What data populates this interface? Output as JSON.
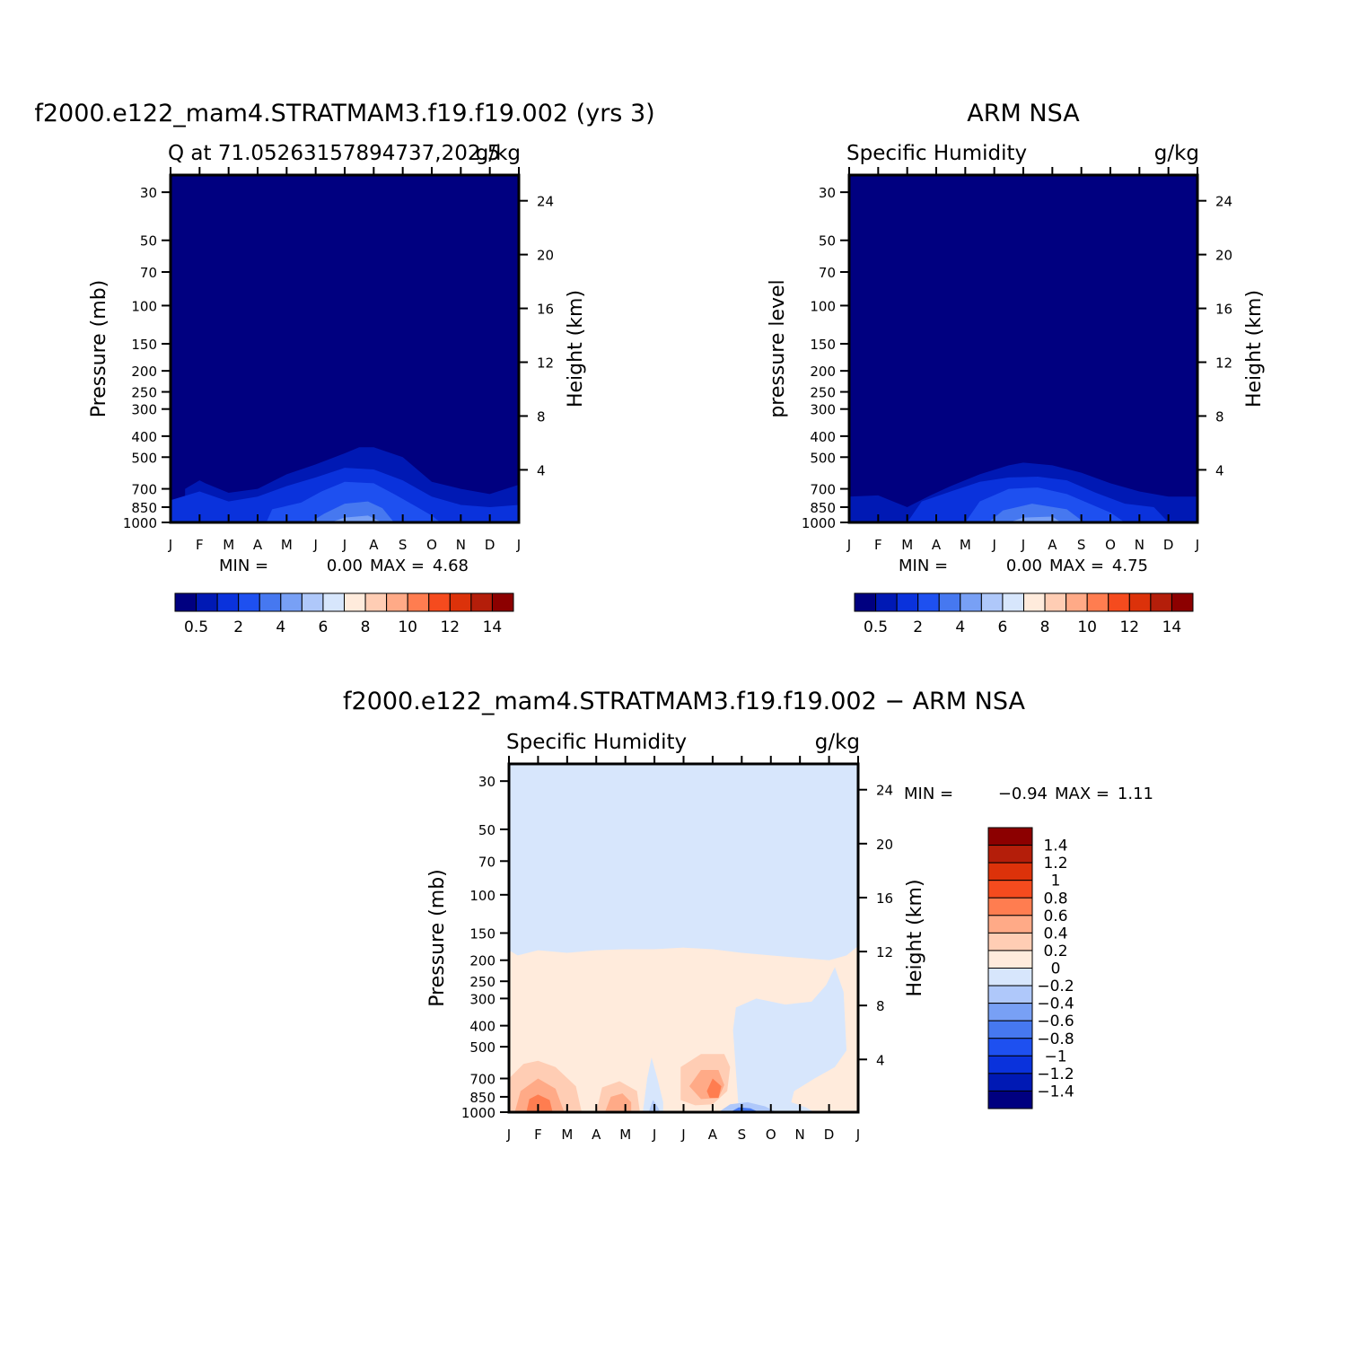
{
  "chart_data": [
    {
      "type": "contour",
      "title": "f2000.e122_mam4.STRATMAM3.f19.f19.002 (yrs 3)",
      "subtitle_left": "Q at 71.05263157894737,202.5",
      "units": "g/kg",
      "ylabel_left": "Pressure (mb)",
      "ylabel_right": "Height (km)",
      "x_ticks": [
        "J",
        "F",
        "M",
        "A",
        "M",
        "J",
        "J",
        "A",
        "S",
        "O",
        "N",
        "D",
        "J"
      ],
      "y_ticks_left": [
        30,
        50,
        70,
        100,
        150,
        200,
        250,
        300,
        400,
        500,
        700,
        850,
        1000
      ],
      "y_ticks_right": [
        24,
        20,
        16,
        12,
        8,
        4
      ],
      "y_scale": "log",
      "ylim": [
        1000,
        25
      ],
      "stats": {
        "min_label": "MIN =",
        "min": "0.00",
        "max_label": "MAX =",
        "max": "4.68"
      },
      "colorbar": {
        "orientation": "horizontal",
        "labels": [
          "0.5",
          "2",
          "4",
          "6",
          "8",
          "10",
          "12",
          "14"
        ],
        "colors": [
          "#000080",
          "#0019b4",
          "#0a32dc",
          "#1e50f0",
          "#4678f0",
          "#78a0f5",
          "#afc8fa",
          "#d7e6fc",
          "#ffebdc",
          "#ffcdb4",
          "#ffaa87",
          "#ff7d50",
          "#f54b1e",
          "#dc320a",
          "#b41e0a",
          "#8c0000"
        ]
      },
      "contours": [
        {
          "level": "0.5",
          "color": "#0019b4",
          "upper_boundary": [
            [
              0.5,
              700
            ],
            [
              1.0,
              640
            ],
            [
              1.2,
              660
            ],
            [
              2.0,
              730
            ],
            [
              3.0,
              700
            ],
            [
              4.0,
              600
            ],
            [
              5.0,
              540
            ],
            [
              6.0,
              480
            ],
            [
              6.5,
              450
            ],
            [
              7.0,
              450
            ],
            [
              8.0,
              500
            ],
            [
              9.0,
              650
            ],
            [
              10.0,
              700
            ],
            [
              11.0,
              740
            ],
            [
              12.0,
              670
            ]
          ]
        },
        {
          "level": "1",
          "color": "#0a32dc",
          "upper_boundary": [
            [
              0.0,
              790
            ],
            [
              1.0,
              720
            ],
            [
              2.0,
              800
            ],
            [
              3.0,
              760
            ],
            [
              4.0,
              680
            ],
            [
              5.0,
              620
            ],
            [
              6.0,
              560
            ],
            [
              7.0,
              570
            ],
            [
              8.0,
              640
            ],
            [
              9.0,
              760
            ],
            [
              10.0,
              830
            ],
            [
              11.0,
              850
            ],
            [
              12.0,
              830
            ]
          ]
        },
        {
          "level": "2",
          "color": "#1e50f0",
          "upper_boundary": [
            [
              3.3,
              1000
            ],
            [
              3.5,
              870
            ],
            [
              4.5,
              810
            ],
            [
              5.2,
              720
            ],
            [
              6.0,
              650
            ],
            [
              7.0,
              660
            ],
            [
              7.7,
              740
            ],
            [
              8.5,
              850
            ],
            [
              9.0,
              930
            ],
            [
              9.3,
              1000
            ]
          ]
        },
        {
          "level": "3",
          "color": "#4678f0",
          "upper_boundary": [
            [
              4.8,
              1000
            ],
            [
              5.3,
              910
            ],
            [
              6.0,
              820
            ],
            [
              6.8,
              800
            ],
            [
              7.3,
              860
            ],
            [
              7.7,
              1000
            ]
          ]
        },
        {
          "level": "4",
          "color": "#78a0f5",
          "upper_boundary": [
            [
              5.5,
              1000
            ],
            [
              6.0,
              950
            ],
            [
              6.8,
              930
            ],
            [
              7.3,
              1000
            ]
          ]
        }
      ]
    },
    {
      "type": "contour",
      "title": "ARM NSA",
      "subtitle_left": "Specific Humidity",
      "units": "g/kg",
      "ylabel_left": "pressure level",
      "ylabel_right": "Height (km)",
      "x_ticks": [
        "J",
        "F",
        "M",
        "A",
        "M",
        "J",
        "J",
        "A",
        "S",
        "O",
        "N",
        "D",
        "J"
      ],
      "y_ticks_left": [
        30,
        50,
        70,
        100,
        150,
        200,
        250,
        300,
        400,
        500,
        700,
        850,
        1000
      ],
      "y_ticks_right": [
        24,
        20,
        16,
        12,
        8,
        4
      ],
      "y_scale": "log",
      "ylim": [
        1000,
        25
      ],
      "stats": {
        "min_label": "MIN =",
        "min": "0.00",
        "max_label": "MAX =",
        "max": "4.75"
      },
      "colorbar": {
        "orientation": "horizontal",
        "labels": [
          "0.5",
          "2",
          "4",
          "6",
          "8",
          "10",
          "12",
          "14"
        ],
        "colors": [
          "#000080",
          "#0019b4",
          "#0a32dc",
          "#1e50f0",
          "#4678f0",
          "#78a0f5",
          "#afc8fa",
          "#d7e6fc",
          "#ffebdc",
          "#ffcdb4",
          "#ffaa87",
          "#ff7d50",
          "#f54b1e",
          "#dc320a",
          "#b41e0a",
          "#8c0000"
        ]
      },
      "contours": [
        {
          "level": "0.5",
          "color": "#0019b4",
          "upper_boundary": [
            [
              0.0,
              760
            ],
            [
              1.0,
              750
            ],
            [
              2.0,
              850
            ],
            [
              2.8,
              750
            ],
            [
              3.5,
              680
            ],
            [
              4.5,
              600
            ],
            [
              5.5,
              545
            ],
            [
              6.0,
              530
            ],
            [
              7.0,
              545
            ],
            [
              8.0,
              590
            ],
            [
              9.0,
              660
            ],
            [
              10.0,
              720
            ],
            [
              11.0,
              760
            ],
            [
              12.0,
              760
            ]
          ]
        },
        {
          "level": "1",
          "color": "#0a32dc",
          "upper_boundary": [
            [
              2.0,
              1000
            ],
            [
              2.5,
              800
            ],
            [
              3.5,
              720
            ],
            [
              4.5,
              650
            ],
            [
              5.5,
              620
            ],
            [
              6.5,
              615
            ],
            [
              7.5,
              640
            ],
            [
              8.5,
              730
            ],
            [
              9.5,
              820
            ],
            [
              10.5,
              850
            ],
            [
              11.0,
              1000
            ]
          ]
        },
        {
          "level": "2",
          "color": "#1e50f0",
          "upper_boundary": [
            [
              4.0,
              1000
            ],
            [
              4.5,
              800
            ],
            [
              5.5,
              700
            ],
            [
              6.5,
              690
            ],
            [
              7.5,
              740
            ],
            [
              9.0,
              900
            ],
            [
              9.5,
              1000
            ]
          ]
        },
        {
          "level": "3",
          "color": "#4678f0",
          "upper_boundary": [
            [
              4.8,
              1000
            ],
            [
              5.3,
              880
            ],
            [
              6.3,
              820
            ],
            [
              7.5,
              870
            ],
            [
              8.1,
              1000
            ]
          ]
        },
        {
          "level": "4",
          "color": "#78a0f5",
          "upper_boundary": [
            [
              5.5,
              1000
            ],
            [
              6.0,
              950
            ],
            [
              7.0,
              940
            ],
            [
              7.3,
              1000
            ]
          ]
        }
      ]
    },
    {
      "type": "contour",
      "title": "f2000.e122_mam4.STRATMAM3.f19.f19.002 − ARM NSA",
      "subtitle_left": "Specific Humidity",
      "units": "g/kg",
      "ylabel_left": "Pressure (mb)",
      "ylabel_right": "Height (km)",
      "x_ticks": [
        "J",
        "F",
        "M",
        "A",
        "M",
        "J",
        "J",
        "A",
        "S",
        "O",
        "N",
        "D",
        "J"
      ],
      "y_ticks_left": [
        30,
        50,
        70,
        100,
        150,
        200,
        250,
        300,
        400,
        500,
        700,
        850,
        1000
      ],
      "y_ticks_right": [
        24,
        20,
        16,
        12,
        8,
        4
      ],
      "y_scale": "log",
      "ylim": [
        1000,
        25
      ],
      "stats": {
        "min_label": "MIN =",
        "min": "−0.94",
        "max_label": "MAX =",
        "max": "1.11"
      },
      "colorbar": {
        "orientation": "vertical",
        "labels": [
          "1.4",
          "1.2",
          "1",
          "0.8",
          "0.6",
          "0.4",
          "0.2",
          "0",
          "−0.2",
          "−0.4",
          "−0.6",
          "−0.8",
          "−1",
          "−1.2",
          "−1.4"
        ],
        "colors": [
          "#8c0000",
          "#b41e0a",
          "#dc320a",
          "#f54b1e",
          "#ff7d50",
          "#ffaa87",
          "#ffcdb4",
          "#ffebdc",
          "#d7e6fc",
          "#afc8fa",
          "#78a0f5",
          "#4678f0",
          "#1e50f0",
          "#0a32dc",
          "#0019b4",
          "#000080"
        ]
      },
      "background_color": "#d7e6fc",
      "positive_region": {
        "color": "#ffebdc",
        "upper_boundary": [
          [
            0.0,
            180
          ],
          [
            0.3,
            190
          ],
          [
            1.0,
            180
          ],
          [
            2.0,
            185
          ],
          [
            3.0,
            180
          ],
          [
            4.0,
            178
          ],
          [
            5.0,
            178
          ],
          [
            6.0,
            175
          ],
          [
            7.0,
            178
          ],
          [
            8.0,
            185
          ],
          [
            9.0,
            190
          ],
          [
            10.0,
            195
          ],
          [
            11.0,
            200
          ],
          [
            11.6,
            190
          ],
          [
            12.0,
            172
          ]
        ]
      },
      "negative_regions": [
        {
          "color": "#d7e6fc",
          "points": [
            [
              7.9,
              1000
            ],
            [
              7.7,
              420
            ],
            [
              7.8,
              330
            ],
            [
              8.5,
              300
            ],
            [
              9.5,
              320
            ],
            [
              10.4,
              310
            ],
            [
              10.9,
              260
            ],
            [
              11.2,
              215
            ],
            [
              11.5,
              280
            ],
            [
              11.6,
              520
            ],
            [
              11.2,
              620
            ],
            [
              10.5,
              700
            ],
            [
              9.8,
              800
            ],
            [
              9.7,
              900
            ],
            [
              10.2,
              950
            ],
            [
              10.5,
              1000
            ]
          ]
        },
        {
          "color": "#d7e6fc",
          "points": [
            [
              4.6,
              1000
            ],
            [
              4.75,
              700
            ],
            [
              4.9,
              560
            ],
            [
              5.1,
              700
            ],
            [
              5.3,
              900
            ],
            [
              5.3,
              1000
            ]
          ]
        },
        {
          "color": "#afc8fa",
          "points": [
            [
              4.8,
              1000
            ],
            [
              4.95,
              880
            ],
            [
              5.1,
              940
            ],
            [
              5.2,
              1000
            ]
          ]
        },
        {
          "color": "#afc8fa",
          "points": [
            [
              7.2,
              1000
            ],
            [
              7.6,
              920
            ],
            [
              8.2,
              900
            ],
            [
              8.8,
              940
            ],
            [
              9.2,
              1000
            ]
          ]
        },
        {
          "color": "#4678f0",
          "points": [
            [
              7.6,
              1000
            ],
            [
              7.9,
              950
            ],
            [
              8.3,
              960
            ],
            [
              8.6,
              1000
            ]
          ]
        }
      ],
      "positive_patches": [
        {
          "color": "#ffcdb4",
          "points": [
            [
              0.0,
              1000
            ],
            [
              0.0,
              700
            ],
            [
              0.5,
              600
            ],
            [
              1.0,
              580
            ],
            [
              1.6,
              620
            ],
            [
              2.3,
              760
            ],
            [
              2.5,
              1000
            ]
          ]
        },
        {
          "color": "#ffaa87",
          "points": [
            [
              0.2,
              1000
            ],
            [
              0.4,
              800
            ],
            [
              1.0,
              700
            ],
            [
              1.6,
              780
            ],
            [
              1.9,
              1000
            ]
          ]
        },
        {
          "color": "#ff7d50",
          "points": [
            [
              0.6,
              1000
            ],
            [
              0.7,
              870
            ],
            [
              1.0,
              830
            ],
            [
              1.4,
              880
            ],
            [
              1.5,
              1000
            ]
          ]
        },
        {
          "color": "#ffcdb4",
          "points": [
            [
              3.0,
              1000
            ],
            [
              3.2,
              770
            ],
            [
              3.8,
              720
            ],
            [
              4.4,
              800
            ],
            [
              4.5,
              1000
            ]
          ]
        },
        {
          "color": "#ffaa87",
          "points": [
            [
              3.3,
              1000
            ],
            [
              3.5,
              850
            ],
            [
              3.9,
              820
            ],
            [
              4.2,
              900
            ],
            [
              4.2,
              1000
            ]
          ]
        },
        {
          "color": "#ffcdb4",
          "points": [
            [
              5.9,
              880
            ],
            [
              5.9,
              620
            ],
            [
              6.6,
              540
            ],
            [
              7.4,
              540
            ],
            [
              7.6,
              620
            ],
            [
              7.5,
              800
            ],
            [
              7.0,
              920
            ],
            [
              6.4,
              930
            ]
          ]
        },
        {
          "color": "#ffaa87",
          "points": [
            [
              6.2,
              760
            ],
            [
              6.6,
              640
            ],
            [
              7.2,
              640
            ],
            [
              7.4,
              750
            ],
            [
              7.2,
              860
            ],
            [
              6.6,
              870
            ]
          ]
        },
        {
          "color": "#ff7d50",
          "points": [
            [
              6.8,
              800
            ],
            [
              7.0,
              700
            ],
            [
              7.3,
              760
            ],
            [
              7.2,
              860
            ],
            [
              6.9,
              860
            ]
          ]
        }
      ]
    }
  ]
}
